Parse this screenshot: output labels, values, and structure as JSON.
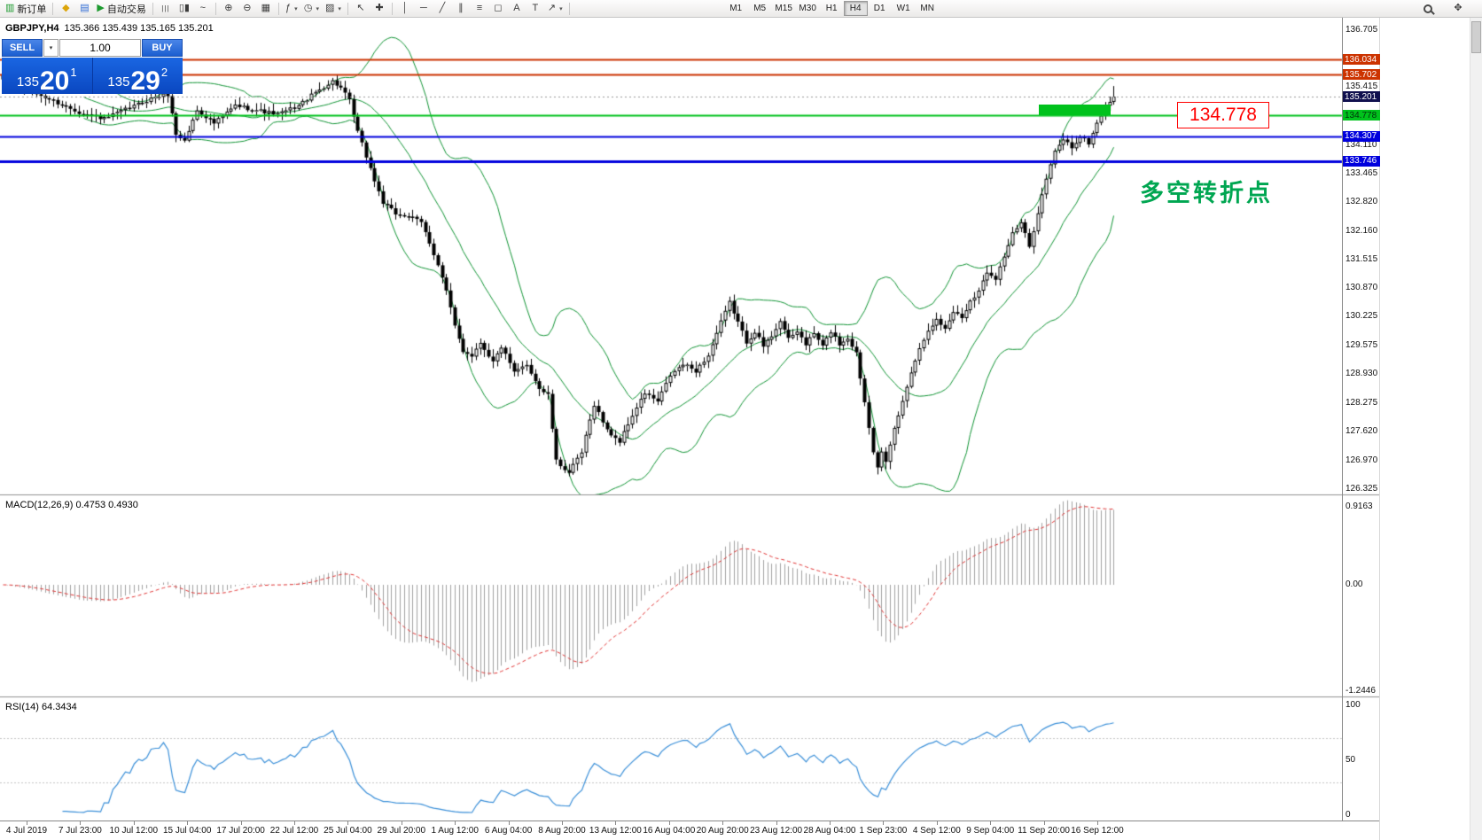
{
  "app": {
    "name": "MetaTrader 4 terminal"
  },
  "colors": {
    "toolbar_bg": "#f0efee",
    "chart_bg": "#ffffff",
    "bull": "#ffffff",
    "bear": "#000000",
    "candle_outline": "#000000",
    "bollinger": "#0f9333",
    "macd_hist": "#a0a0a0",
    "macd_signal": "#e03232",
    "rsi_line": "#3a8fd8",
    "line_red": "#cc3300",
    "line_green": "#00c21c",
    "line_blue": "#0000dd",
    "bid_label_bg": "#10104e",
    "annotation_green": "#00a651",
    "annotation_red": "#ff0000",
    "trade_panel_blue": "#0a52d2"
  },
  "toolbar": {
    "new_order_label": "新订单",
    "autotrading_label": "自动交易",
    "timeframes": [
      "M1",
      "M5",
      "M15",
      "M30",
      "H1",
      "H4",
      "D1",
      "W1",
      "MN"
    ],
    "active_timeframe": "H4"
  },
  "icons": {
    "new_order": "▥",
    "metaeditor": "◆",
    "charts": "▤",
    "autotrading_play": "▶",
    "bars_chart": "|||",
    "candles_chart": "▯▮",
    "line_chart": "~",
    "zoom_in": "⊕",
    "zoom_out": "⊖",
    "tile_windows": "▦",
    "indicators": "ƒ",
    "periods": "◷",
    "templates": "▨",
    "cursor": "↖",
    "crosshair": "✚",
    "vertical_line": "│",
    "horizontal_line": "─",
    "trendline": "╱",
    "channel": "∥",
    "fibonacci": "≡",
    "shapes": "◻",
    "text": "A",
    "label": "T",
    "arrows": "↗",
    "dropdown": "▾",
    "pan": "✥"
  },
  "chart": {
    "symbol_title": "GBPJPY,H4",
    "ohlc": "135.366 135.439 135.165 135.201"
  },
  "trade_panel": {
    "sell_label": "SELL",
    "buy_label": "BUY",
    "volume": "1.00",
    "sell_price_big": "135",
    "sell_price_pips": "20",
    "sell_price_sup": "1",
    "buy_price_big": "135",
    "buy_price_pips": "29",
    "buy_price_sup": "2"
  },
  "indicators_panel": {
    "macd_label": "MACD(12,26,9) 0.4753 0.4930",
    "rsi_label": "RSI(14) 64.3434"
  },
  "annotations": {
    "price_callout": "134.778",
    "turning_point_text": "多空转折点"
  },
  "chart_data": {
    "type": "candlestick",
    "symbol": "GBPJPY",
    "timeframe": "H4",
    "ohlc_header": {
      "open": 135.366,
      "high": 135.439,
      "low": 135.165,
      "close": 135.201
    },
    "bid_price": 135.201,
    "price_axis_range": [
      126.325,
      136.705
    ],
    "price_axis_ticks": [
      136.705,
      136.06,
      135.415,
      134.765,
      134.11,
      133.465,
      132.82,
      132.16,
      131.515,
      130.87,
      130.225,
      129.575,
      128.93,
      128.275,
      127.62,
      126.97,
      126.325
    ],
    "horizontal_lines": [
      {
        "price": 136.034,
        "color": "red",
        "width": 2
      },
      {
        "price": 135.702,
        "color": "red",
        "width": 2
      },
      {
        "price": 134.778,
        "color": "green",
        "width": 2
      },
      {
        "price": 134.307,
        "color": "blue",
        "width": 2
      },
      {
        "price": 133.746,
        "color": "blue",
        "width": 3
      }
    ],
    "highlight_box": {
      "price_top": 135.03,
      "price_bottom": 134.775
    },
    "time_labels": [
      "4 Jul 2019",
      "7 Jul 23:00",
      "10 Jul 12:00",
      "15 Jul 04:00",
      "17 Jul 20:00",
      "22 Jul 12:00",
      "25 Jul 04:00",
      "29 Jul 20:00",
      "1 Aug 12:00",
      "6 Aug 04:00",
      "8 Aug 20:00",
      "13 Aug 12:00",
      "16 Aug 04:00",
      "20 Aug 20:00",
      "23 Aug 12:00",
      "28 Aug 04:00",
      "1 Sep 23:00",
      "4 Sep 12:00",
      "9 Sep 04:00",
      "11 Sep 20:00",
      "16 Sep 12:00"
    ],
    "candle_count": 264,
    "close_anchors": [
      [
        0,
        135.55
      ],
      [
        6,
        135.35
      ],
      [
        12,
        135.1
      ],
      [
        18,
        134.85
      ],
      [
        24,
        134.7
      ],
      [
        30,
        134.95
      ],
      [
        36,
        135.2
      ],
      [
        39,
        135.25
      ],
      [
        41,
        134.35
      ],
      [
        43,
        134.2
      ],
      [
        46,
        134.9
      ],
      [
        50,
        134.6
      ],
      [
        55,
        135.0
      ],
      [
        60,
        134.9
      ],
      [
        65,
        134.8
      ],
      [
        70,
        135.0
      ],
      [
        74,
        135.3
      ],
      [
        78,
        135.55
      ],
      [
        80,
        135.4
      ],
      [
        82,
        135.1
      ],
      [
        84,
        134.4
      ],
      [
        86,
        133.85
      ],
      [
        88,
        133.3
      ],
      [
        90,
        132.8
      ],
      [
        93,
        132.55
      ],
      [
        96,
        132.5
      ],
      [
        99,
        132.35
      ],
      [
        101,
        131.9
      ],
      [
        103,
        131.4
      ],
      [
        105,
        130.8
      ],
      [
        107,
        130.0
      ],
      [
        109,
        129.45
      ],
      [
        111,
        129.35
      ],
      [
        113,
        129.65
      ],
      [
        116,
        129.2
      ],
      [
        118,
        129.55
      ],
      [
        121,
        128.95
      ],
      [
        124,
        129.15
      ],
      [
        127,
        128.6
      ],
      [
        129,
        128.45
      ],
      [
        131,
        126.95
      ],
      [
        134,
        126.7
      ],
      [
        137,
        127.15
      ],
      [
        140,
        128.25
      ],
      [
        143,
        127.65
      ],
      [
        146,
        127.4
      ],
      [
        149,
        128.0
      ],
      [
        152,
        128.5
      ],
      [
        155,
        128.3
      ],
      [
        158,
        128.9
      ],
      [
        161,
        129.15
      ],
      [
        164,
        129.0
      ],
      [
        167,
        129.35
      ],
      [
        170,
        130.1
      ],
      [
        172,
        130.55
      ],
      [
        174,
        130.1
      ],
      [
        176,
        129.65
      ],
      [
        178,
        129.9
      ],
      [
        180,
        129.55
      ],
      [
        182,
        129.8
      ],
      [
        184,
        130.15
      ],
      [
        186,
        129.7
      ],
      [
        188,
        129.9
      ],
      [
        190,
        129.6
      ],
      [
        192,
        129.85
      ],
      [
        194,
        129.55
      ],
      [
        196,
        129.9
      ],
      [
        198,
        129.6
      ],
      [
        200,
        129.75
      ],
      [
        202,
        129.4
      ],
      [
        204,
        128.3
      ],
      [
        206,
        127.2
      ],
      [
        207,
        126.85
      ],
      [
        208,
        127.15
      ],
      [
        209,
        126.9
      ],
      [
        211,
        127.7
      ],
      [
        213,
        128.3
      ],
      [
        215,
        129.0
      ],
      [
        217,
        129.5
      ],
      [
        219,
        129.95
      ],
      [
        221,
        130.15
      ],
      [
        223,
        129.95
      ],
      [
        225,
        130.35
      ],
      [
        227,
        130.2
      ],
      [
        229,
        130.6
      ],
      [
        231,
        130.8
      ],
      [
        233,
        131.25
      ],
      [
        235,
        131.1
      ],
      [
        237,
        131.6
      ],
      [
        239,
        132.1
      ],
      [
        241,
        132.35
      ],
      [
        243,
        131.8
      ],
      [
        245,
        132.6
      ],
      [
        247,
        133.35
      ],
      [
        249,
        133.95
      ],
      [
        251,
        134.25
      ],
      [
        253,
        134.05
      ],
      [
        255,
        134.3
      ],
      [
        257,
        134.15
      ],
      [
        259,
        134.6
      ],
      [
        261,
        135.0
      ],
      [
        263,
        135.201
      ]
    ],
    "last_candle_high": 135.44,
    "bollinger": {
      "period": 20,
      "deviation": 2
    },
    "macd": {
      "fast": 12,
      "slow": 26,
      "signal": 9,
      "current": 0.4753,
      "signal_current": 0.493,
      "axis_values": [
        0.9163,
        0,
        -1.2446
      ]
    },
    "rsi": {
      "period": 14,
      "current": 64.3434,
      "axis_values": [
        100,
        50,
        0
      ],
      "levels": [
        70,
        30
      ]
    }
  }
}
